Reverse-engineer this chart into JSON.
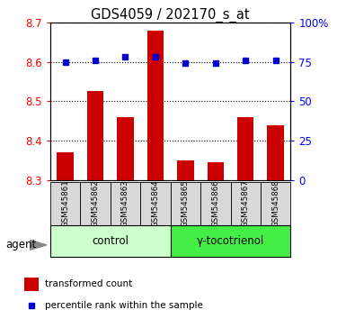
{
  "title": "GDS4059 / 202170_s_at",
  "samples": [
    "GSM545861",
    "GSM545862",
    "GSM545863",
    "GSM545864",
    "GSM545865",
    "GSM545866",
    "GSM545867",
    "GSM545868"
  ],
  "red_values": [
    8.37,
    8.525,
    8.46,
    8.68,
    8.35,
    8.345,
    8.46,
    8.44
  ],
  "blue_percentiles": [
    75,
    76,
    78,
    78,
    74,
    74,
    76,
    76
  ],
  "ylim_left": [
    8.3,
    8.7
  ],
  "yticks_left": [
    8.3,
    8.4,
    8.5,
    8.6,
    8.7
  ],
  "ylim_right": [
    0,
    100
  ],
  "yticks_right": [
    0,
    25,
    50,
    75,
    100
  ],
  "ytick_labels_right": [
    "0",
    "25",
    "50",
    "75",
    "100%"
  ],
  "bar_color": "#cc0000",
  "dot_color": "#0000cc",
  "bar_bottom": 8.3,
  "groups": [
    {
      "label": "control",
      "indices": [
        0,
        1,
        2,
        3
      ]
    },
    {
      "label": "γ-tocotrienol",
      "indices": [
        4,
        5,
        6,
        7
      ]
    }
  ],
  "group_bg_color_light": "#ccffcc",
  "group_bg_color_dark": "#44ee44",
  "sample_bg_color": "#d8d8d8",
  "agent_label": "agent",
  "legend_red": "transformed count",
  "legend_blue": "percentile rank within the sample",
  "title_fontsize": 10.5
}
